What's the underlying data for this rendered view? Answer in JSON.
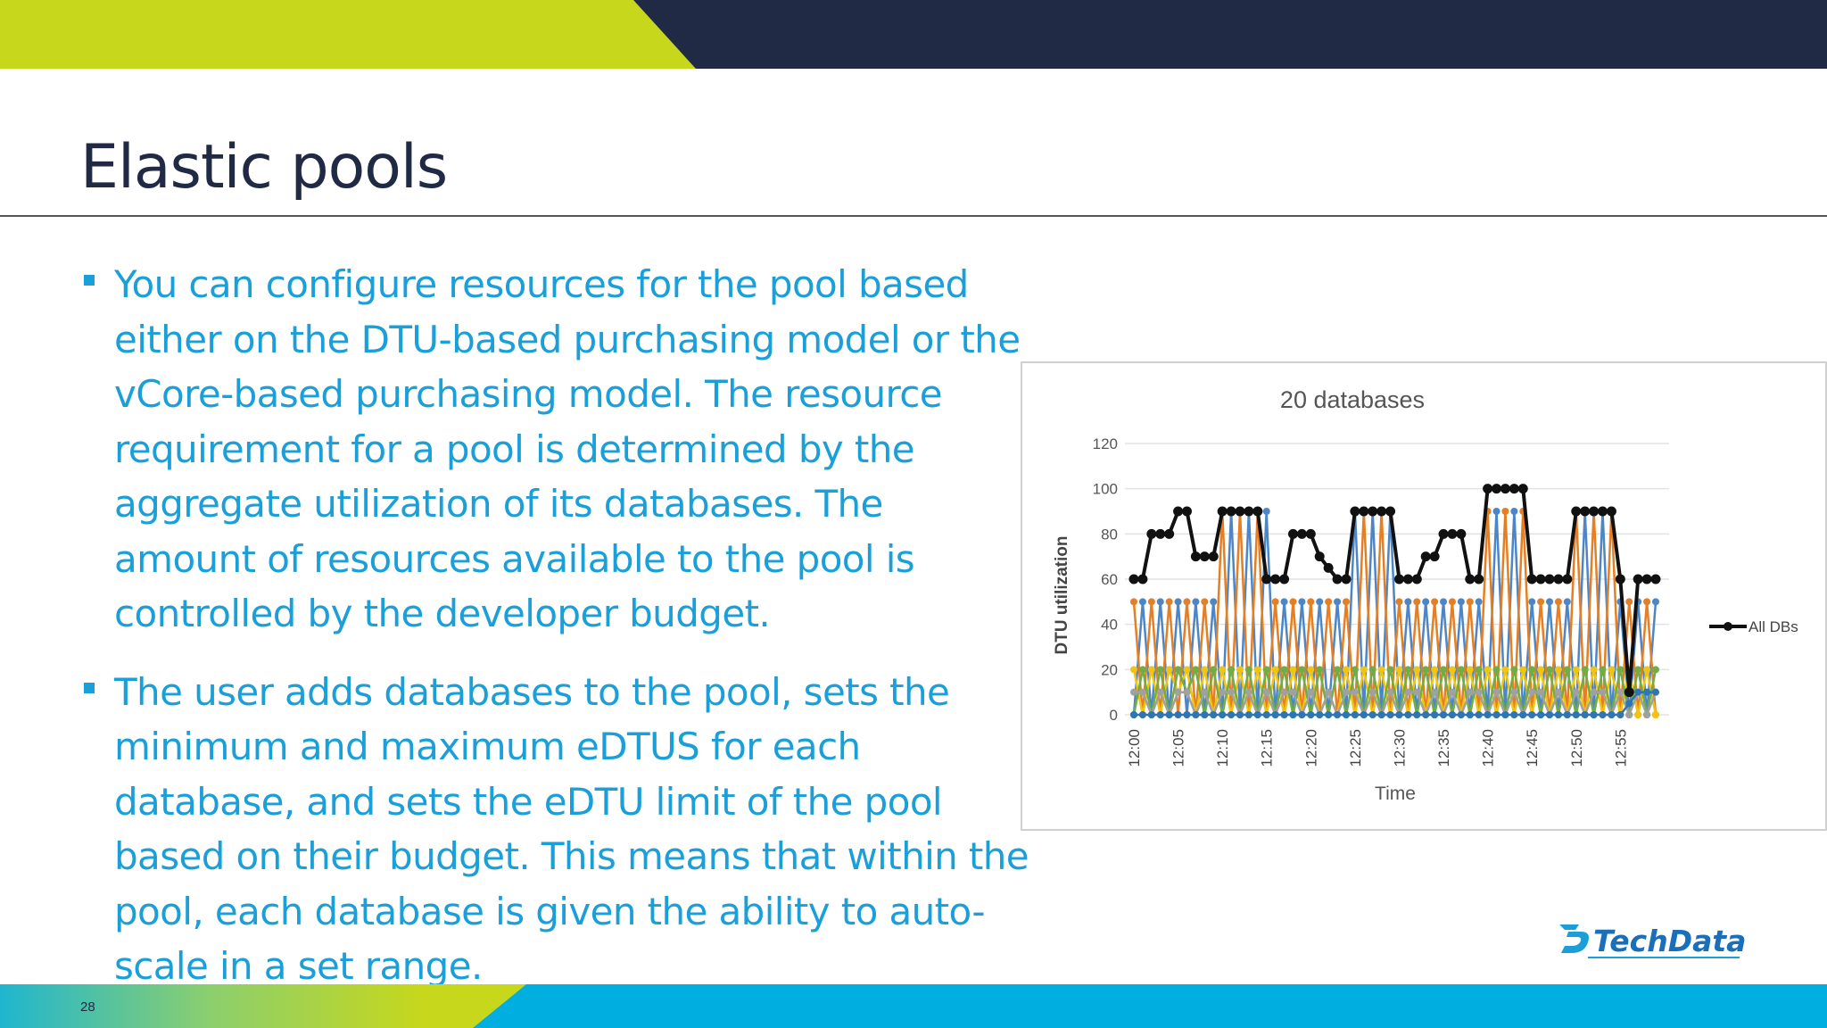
{
  "slide": {
    "title": "Elastic pools",
    "page_number": "28"
  },
  "bullets": [
    {
      "text": "You can configure resources for the pool based\neither on the DTU-based purchasing model or the\nvCore-based purchasing model. The resource\nrequirement for a pool is determined by the\naggregate utilization of its databases. The\namount of resources available to the pool is\ncontrolled by the developer budget."
    },
    {
      "text": "The user adds databases to the pool, sets the\nminimum and maximum eDTUS for each\ndatabase, and sets the eDTU limit of the pool\nbased on their budget. This means that within the\npool, each database is given the ability to auto-\nscale in a set range."
    }
  ],
  "logo": {
    "text": "TechData"
  },
  "colors": {
    "navy": "#212a45",
    "lime": "#c6d71c",
    "cyan": "#00aee0",
    "text_blue": "#1a9fd9"
  },
  "chart_data": {
    "type": "line",
    "title": "20 databases",
    "xlabel": "Time",
    "ylabel": "DTU utilization",
    "ylim": [
      0,
      120
    ],
    "yticks": [
      0,
      20,
      40,
      60,
      80,
      100,
      120
    ],
    "x_tick_labels": [
      "12:00",
      "12:05",
      "12:10",
      "12:15",
      "12:20",
      "12:25",
      "12:30",
      "12:35",
      "12:40",
      "12:45",
      "12:50",
      "12:55"
    ],
    "grid": true,
    "legend": "right",
    "series": [
      {
        "name": "All DBs",
        "values": [
          60,
          60,
          80,
          80,
          80,
          90,
          90,
          70,
          70,
          70,
          90,
          90,
          90,
          90,
          90,
          60,
          60,
          60,
          80,
          80,
          80,
          70,
          65,
          60,
          60,
          90,
          90,
          90,
          90,
          90,
          60,
          60,
          60,
          70,
          70,
          80,
          80,
          80,
          60,
          60,
          100,
          100,
          100,
          100,
          100,
          60,
          60,
          60,
          60,
          60,
          90,
          90,
          90,
          90,
          90,
          60,
          10,
          60,
          60,
          60
        ]
      },
      {
        "values": [
          0,
          50,
          0,
          50,
          0,
          50,
          0,
          50,
          0,
          50,
          0,
          90,
          0,
          90,
          0,
          90,
          0,
          50,
          0,
          50,
          0,
          50,
          0,
          50,
          0,
          90,
          0,
          90,
          0,
          90,
          0,
          50,
          0,
          50,
          0,
          50,
          0,
          50,
          0,
          50,
          0,
          90,
          0,
          90,
          0,
          50,
          0,
          50,
          0,
          50,
          0,
          90,
          0,
          90,
          0,
          50,
          0,
          50,
          0,
          50
        ]
      },
      {
        "values": [
          50,
          0,
          50,
          0,
          50,
          0,
          50,
          0,
          50,
          0,
          90,
          0,
          90,
          0,
          90,
          0,
          50,
          0,
          50,
          0,
          50,
          0,
          50,
          0,
          50,
          0,
          90,
          0,
          90,
          0,
          50,
          0,
          50,
          0,
          50,
          0,
          50,
          0,
          50,
          0,
          90,
          0,
          90,
          0,
          90,
          0,
          50,
          0,
          50,
          0,
          90,
          0,
          90,
          0,
          90,
          0,
          50,
          0,
          50,
          0
        ]
      },
      {
        "values": [
          20,
          0,
          20,
          0,
          20,
          10,
          20,
          0,
          20,
          0,
          20,
          0,
          20,
          0,
          20,
          0,
          20,
          0,
          20,
          0,
          20,
          0,
          10,
          0,
          20,
          0,
          20,
          0,
          20,
          0,
          20,
          0,
          20,
          0,
          20,
          0,
          20,
          0,
          20,
          0,
          20,
          0,
          20,
          0,
          20,
          0,
          20,
          0,
          20,
          0,
          20,
          0,
          20,
          0,
          20,
          0,
          20,
          0,
          20,
          0
        ]
      },
      {
        "values": [
          0,
          20,
          0,
          20,
          0,
          20,
          10,
          20,
          0,
          20,
          0,
          20,
          0,
          20,
          0,
          20,
          0,
          20,
          0,
          20,
          0,
          20,
          0,
          20,
          0,
          20,
          0,
          20,
          0,
          20,
          0,
          20,
          0,
          20,
          0,
          20,
          0,
          20,
          0,
          20,
          0,
          20,
          0,
          20,
          0,
          20,
          0,
          20,
          0,
          20,
          0,
          20,
          0,
          20,
          0,
          20,
          0,
          20,
          0,
          20
        ]
      },
      {
        "values": [
          10,
          10,
          0,
          10,
          0,
          10,
          10,
          0,
          10,
          0,
          10,
          10,
          0,
          10,
          0,
          10,
          0,
          10,
          10,
          0,
          10,
          0,
          10,
          0,
          10,
          10,
          0,
          10,
          0,
          10,
          0,
          10,
          10,
          0,
          10,
          0,
          10,
          0,
          10,
          10,
          0,
          10,
          0,
          10,
          0,
          10,
          10,
          0,
          10,
          0,
          10,
          0,
          10,
          10,
          0,
          10,
          0,
          10,
          0,
          10
        ]
      },
      {
        "values": [
          0,
          0,
          0,
          0,
          0,
          0,
          0,
          0,
          0,
          0,
          0,
          0,
          0,
          0,
          0,
          0,
          0,
          0,
          0,
          0,
          0,
          0,
          0,
          0,
          0,
          0,
          0,
          0,
          0,
          0,
          0,
          0,
          0,
          0,
          0,
          0,
          0,
          0,
          0,
          0,
          0,
          0,
          0,
          0,
          0,
          0,
          0,
          0,
          0,
          0,
          0,
          0,
          0,
          0,
          0,
          0,
          5,
          10,
          10,
          10
        ]
      }
    ]
  }
}
